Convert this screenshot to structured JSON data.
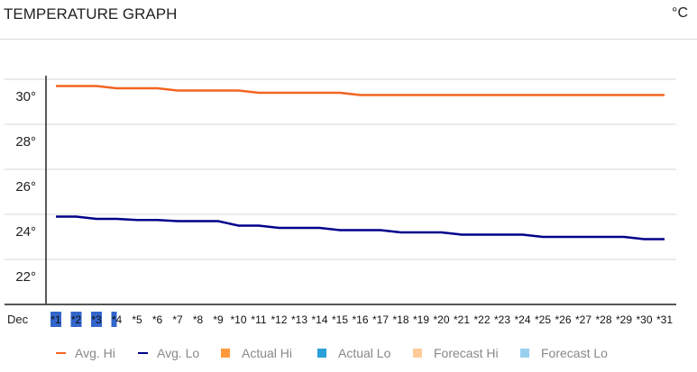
{
  "header": {
    "title": "TEMPERATURE GRAPH",
    "unit": "°C"
  },
  "chart_data": {
    "type": "line",
    "x_prefix": "Dec",
    "categories": [
      "*1",
      "*2",
      "*3",
      "*4",
      "*5",
      "*6",
      "*7",
      "*8",
      "*9",
      "*10",
      "*11",
      "*12",
      "*13",
      "*14",
      "*15",
      "*16",
      "*17",
      "*18",
      "*19",
      "*20",
      "*21",
      "*22",
      "*23",
      "*24",
      "*25",
      "*26",
      "*27",
      "*28",
      "*29",
      "*30",
      "*31"
    ],
    "highlighted_categories": [
      "*1",
      "*2",
      "*3",
      "*4"
    ],
    "yticks": [
      22,
      24,
      26,
      28,
      30
    ],
    "ytick_labels": [
      "22°",
      "24°",
      "26°",
      "28°",
      "30°"
    ],
    "ylim": [
      20,
      30
    ],
    "grid": true,
    "legend_placement": "bottom",
    "series": [
      {
        "name": "Avg. Hi",
        "color": "#f26522",
        "values": [
          29.7,
          29.7,
          29.7,
          29.6,
          29.6,
          29.6,
          29.5,
          29.5,
          29.5,
          29.5,
          29.4,
          29.4,
          29.4,
          29.4,
          29.4,
          29.3,
          29.3,
          29.3,
          29.3,
          29.3,
          29.3,
          29.3,
          29.3,
          29.3,
          29.3,
          29.3,
          29.3,
          29.3,
          29.3,
          29.3,
          29.3
        ]
      },
      {
        "name": "Avg. Lo",
        "color": "#00008b",
        "values": [
          23.9,
          23.9,
          23.8,
          23.8,
          23.75,
          23.75,
          23.7,
          23.7,
          23.7,
          23.5,
          23.5,
          23.4,
          23.4,
          23.4,
          23.3,
          23.3,
          23.3,
          23.2,
          23.2,
          23.2,
          23.1,
          23.1,
          23.1,
          23.1,
          23.0,
          23.0,
          23.0,
          23.0,
          23.0,
          22.9,
          22.9
        ]
      }
    ],
    "legend": [
      {
        "name": "Avg. Hi",
        "color": "#f26522",
        "shape": "line"
      },
      {
        "name": "Avg. Lo",
        "color": "#00008b",
        "shape": "line"
      },
      {
        "name": "Actual Hi",
        "color": "#ff9a3c",
        "shape": "square"
      },
      {
        "name": "Actual Lo",
        "color": "#2a9fd8",
        "shape": "square"
      },
      {
        "name": "Forecast Hi",
        "color": "#ffcc99",
        "shape": "square"
      },
      {
        "name": "Forecast Lo",
        "color": "#99d0ee",
        "shape": "square"
      }
    ]
  }
}
